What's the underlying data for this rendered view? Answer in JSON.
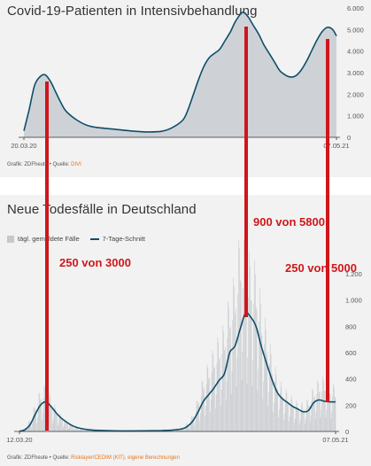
{
  "top_panel": {
    "title": "Covid-19-Patienten in Intensivbehandlung",
    "source_prefix": "Grafik: ZDFheute • Quelle: ",
    "source_highlight": "DIVI"
  },
  "bottom_panel": {
    "title": "Neue Todesfälle in Deutschland",
    "legend_bars": "tägl. gemeldete Fälle",
    "legend_line": "7-Tage-Schnitt",
    "source_prefix": "Grafik: ZDFheute • Quelle: ",
    "source_highlight": "Risklayer/CEDIM (KIT), eigene Berechnungen"
  },
  "annotations": {
    "peak1": "250 von 3000",
    "peak2": "900 von 5800",
    "peak3": "250 von 5000"
  },
  "colors": {
    "line": "#0e4e6a",
    "area_fill": "#c8ccd2",
    "bars": "#c5c8cd",
    "highlight": "#e8751a",
    "annotation": "#d0161b"
  },
  "chart_data": [
    {
      "type": "area",
      "title": "Covid-19-Patienten in Intensivbehandlung",
      "x_range": [
        "20.03.20",
        "07.05.21"
      ],
      "x_tick_labels": [
        "20.03.20",
        "07.05.21"
      ],
      "ylim": [
        0,
        6000
      ],
      "y_ticks": [
        0,
        1000,
        2000,
        3000,
        4000,
        5000,
        6000
      ],
      "y_tick_labels": [
        "0",
        "1.000",
        "2.000",
        "3.000",
        "4.000",
        "5.000",
        "6.000"
      ],
      "grid": false,
      "series": [
        {
          "values": [
            [
              "2020-03-20",
              300
            ],
            [
              "2020-03-27",
              1300
            ],
            [
              "2020-04-03",
              2400
            ],
            [
              "2020-04-10",
              2800
            ],
            [
              "2020-04-17",
              2900
            ],
            [
              "2020-04-24",
              2600
            ],
            [
              "2020-05-01",
              2100
            ],
            [
              "2020-05-08",
              1600
            ],
            [
              "2020-05-15",
              1200
            ],
            [
              "2020-05-29",
              800
            ],
            [
              "2020-06-12",
              550
            ],
            [
              "2020-06-26",
              450
            ],
            [
              "2020-07-17",
              380
            ],
            [
              "2020-08-07",
              300
            ],
            [
              "2020-08-28",
              250
            ],
            [
              "2020-09-18",
              280
            ],
            [
              "2020-10-02",
              450
            ],
            [
              "2020-10-16",
              800
            ],
            [
              "2020-10-23",
              1300
            ],
            [
              "2020-10-30",
              2000
            ],
            [
              "2020-11-06",
              2700
            ],
            [
              "2020-11-13",
              3300
            ],
            [
              "2020-11-20",
              3700
            ],
            [
              "2020-11-27",
              3900
            ],
            [
              "2020-12-04",
              4100
            ],
            [
              "2020-12-11",
              4500
            ],
            [
              "2020-12-18",
              4900
            ],
            [
              "2020-12-25",
              5400
            ],
            [
              "2021-01-03",
              5800
            ],
            [
              "2021-01-10",
              5600
            ],
            [
              "2021-01-17",
              5200
            ],
            [
              "2021-01-24",
              4800
            ],
            [
              "2021-01-31",
              4300
            ],
            [
              "2021-02-07",
              3900
            ],
            [
              "2021-02-14",
              3500
            ],
            [
              "2021-02-21",
              3100
            ],
            [
              "2021-02-28",
              2900
            ],
            [
              "2021-03-07",
              2800
            ],
            [
              "2021-03-14",
              2850
            ],
            [
              "2021-03-21",
              3100
            ],
            [
              "2021-03-28",
              3500
            ],
            [
              "2021-04-04",
              4000
            ],
            [
              "2021-04-11",
              4500
            ],
            [
              "2021-04-18",
              4900
            ],
            [
              "2021-04-25",
              5100
            ],
            [
              "2021-05-02",
              5000
            ],
            [
              "2021-05-07",
              4700
            ]
          ]
        }
      ]
    },
    {
      "type": "bar",
      "title": "Neue Todesfälle in Deutschland",
      "x_range": [
        "12.03.20",
        "07.05.21"
      ],
      "x_tick_labels": [
        "12.03.20",
        "07.05.21"
      ],
      "ylim": [
        0,
        1200
      ],
      "y_ticks": [
        0,
        200,
        400,
        600,
        800,
        1000,
        1200
      ],
      "y_tick_labels": [
        "0",
        "200",
        "400",
        "600",
        "800",
        "1.000",
        "1.200"
      ],
      "legend": "top-left",
      "grid": false,
      "series": [
        {
          "name": "tägl. gemeldete Fälle",
          "values": [
            [
              "2020-03-12",
              0
            ],
            [
              "2020-03-19",
              20
            ],
            [
              "2020-03-26",
              70
            ],
            [
              "2020-04-02",
              160
            ],
            [
              "2020-04-09",
              240
            ],
            [
              "2020-04-16",
              270
            ],
            [
              "2020-04-23",
              200
            ],
            [
              "2020-04-30",
              130
            ],
            [
              "2020-05-07",
              90
            ],
            [
              "2020-05-14",
              60
            ],
            [
              "2020-05-21",
              40
            ],
            [
              "2020-05-28",
              25
            ],
            [
              "2020-06-04",
              18
            ],
            [
              "2020-06-11",
              12
            ],
            [
              "2020-06-25",
              8
            ],
            [
              "2020-07-16",
              6
            ],
            [
              "2020-08-06",
              5
            ],
            [
              "2020-08-27",
              6
            ],
            [
              "2020-09-17",
              8
            ],
            [
              "2020-10-01",
              12
            ],
            [
              "2020-10-15",
              25
            ],
            [
              "2020-10-22",
              50
            ],
            [
              "2020-10-29",
              100
            ],
            [
              "2020-11-05",
              200
            ],
            [
              "2020-11-12",
              320
            ],
            [
              "2020-11-19",
              400
            ],
            [
              "2020-11-26",
              480
            ],
            [
              "2020-12-03",
              550
            ],
            [
              "2020-12-10",
              620
            ],
            [
              "2020-12-17",
              780
            ],
            [
              "2020-12-24",
              900
            ],
            [
              "2020-12-31",
              1150
            ],
            [
              "2021-01-07",
              1050
            ],
            [
              "2021-01-14",
              1000
            ],
            [
              "2021-01-21",
              950
            ],
            [
              "2021-01-28",
              750
            ],
            [
              "2021-02-04",
              600
            ],
            [
              "2021-02-11",
              450
            ],
            [
              "2021-02-18",
              330
            ],
            [
              "2021-02-25",
              260
            ],
            [
              "2021-03-04",
              230
            ],
            [
              "2021-03-11",
              190
            ],
            [
              "2021-03-18",
              170
            ],
            [
              "2021-03-25",
              160
            ],
            [
              "2021-04-01",
              190
            ],
            [
              "2021-04-08",
              260
            ],
            [
              "2021-04-15",
              300
            ],
            [
              "2021-04-22",
              310
            ],
            [
              "2021-04-29",
              290
            ],
            [
              "2021-05-07",
              260
            ]
          ]
        },
        {
          "name": "7-Tage-Schnitt",
          "values": [
            [
              "2020-03-12",
              2
            ],
            [
              "2020-03-19",
              12
            ],
            [
              "2020-03-26",
              50
            ],
            [
              "2020-04-02",
              130
            ],
            [
              "2020-04-09",
              200
            ],
            [
              "2020-04-16",
              225
            ],
            [
              "2020-04-23",
              190
            ],
            [
              "2020-04-30",
              140
            ],
            [
              "2020-05-07",
              100
            ],
            [
              "2020-05-14",
              70
            ],
            [
              "2020-05-21",
              45
            ],
            [
              "2020-05-28",
              30
            ],
            [
              "2020-06-04",
              20
            ],
            [
              "2020-06-11",
              14
            ],
            [
              "2020-06-25",
              8
            ],
            [
              "2020-07-16",
              5
            ],
            [
              "2020-08-06",
              4
            ],
            [
              "2020-08-27",
              5
            ],
            [
              "2020-09-17",
              7
            ],
            [
              "2020-10-01",
              10
            ],
            [
              "2020-10-15",
              20
            ],
            [
              "2020-10-22",
              40
            ],
            [
              "2020-10-29",
              80
            ],
            [
              "2020-11-05",
              150
            ],
            [
              "2020-11-12",
              230
            ],
            [
              "2020-11-19",
              280
            ],
            [
              "2020-11-26",
              330
            ],
            [
              "2020-12-03",
              390
            ],
            [
              "2020-12-10",
              440
            ],
            [
              "2020-12-17",
              600
            ],
            [
              "2020-12-24",
              650
            ],
            [
              "2020-12-31",
              780
            ],
            [
              "2021-01-07",
              900
            ],
            [
              "2021-01-14",
              870
            ],
            [
              "2021-01-21",
              800
            ],
            [
              "2021-01-28",
              650
            ],
            [
              "2021-02-04",
              520
            ],
            [
              "2021-02-11",
              400
            ],
            [
              "2021-02-18",
              300
            ],
            [
              "2021-02-25",
              250
            ],
            [
              "2021-03-04",
              220
            ],
            [
              "2021-03-11",
              190
            ],
            [
              "2021-03-18",
              170
            ],
            [
              "2021-03-25",
              150
            ],
            [
              "2021-04-01",
              160
            ],
            [
              "2021-04-08",
              220
            ],
            [
              "2021-04-15",
              240
            ],
            [
              "2021-04-22",
              230
            ],
            [
              "2021-04-29",
              225
            ],
            [
              "2021-05-07",
              225
            ]
          ]
        }
      ]
    }
  ]
}
